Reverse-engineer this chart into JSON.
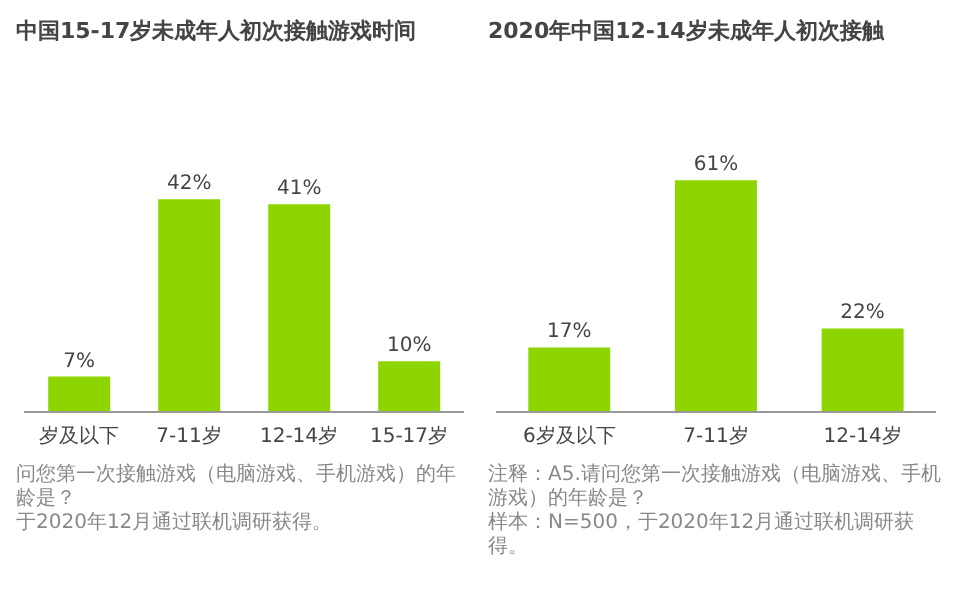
{
  "chart_data": [
    {
      "type": "bar",
      "title": "中国15-17岁未成年人初次接触游戏时间",
      "categories": [
        "岁及以下",
        "7-11岁",
        "12-14岁",
        "15-17岁"
      ],
      "values": [
        7,
        42,
        41,
        10
      ],
      "value_labels": [
        "7%",
        "42%",
        "41%",
        "10%"
      ],
      "color": "#8ed500",
      "tick_labels": "x",
      "grid": false,
      "legend": false,
      "annotations": [
        "问您第一次接触游戏（电脑游戏、手机游戏）的年龄是？",
        "于2020年12月通过联机调研获得。"
      ]
    },
    {
      "type": "bar",
      "title": "2020年中国12-14岁未成年人初次接触",
      "categories": [
        "6岁及以下",
        "7-11岁",
        "12-14岁"
      ],
      "values": [
        17,
        61,
        22
      ],
      "value_labels": [
        "17%",
        "61%",
        "22%"
      ],
      "color": "#8ed500",
      "tick_labels": "x",
      "grid": false,
      "legend": false,
      "annotations": [
        "注释：A5.请问您第一次接触游戏（电脑游戏、手机游戏）的年龄是？",
        "样本：N=500，于2020年12月通过联机调研获得。"
      ]
    }
  ]
}
